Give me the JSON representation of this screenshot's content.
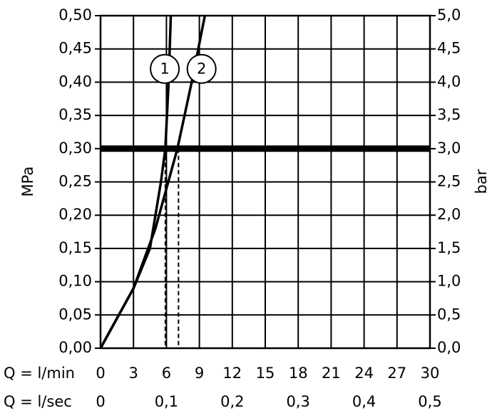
{
  "chart_data": {
    "type": "line",
    "xlabel": "Q = l/min",
    "x2label": "Q = l/sec",
    "ylabel": "MPa",
    "y2label": "bar",
    "xlim": [
      0,
      30
    ],
    "xticks": [
      0,
      3,
      6,
      9,
      12,
      15,
      18,
      21,
      24,
      27,
      30
    ],
    "x2lim": [
      0,
      0.5
    ],
    "x2ticks": [
      {
        "value": 0,
        "label": "0"
      },
      {
        "value": 0.1,
        "label": "0,1"
      },
      {
        "value": 0.2,
        "label": "0,2"
      },
      {
        "value": 0.3,
        "label": "0,3"
      },
      {
        "value": 0.4,
        "label": "0,4"
      },
      {
        "value": 0.5,
        "label": "0,5"
      }
    ],
    "ylim": [
      0,
      0.5
    ],
    "yticks": [
      {
        "value": 0,
        "label": "0,00"
      },
      {
        "value": 0.05,
        "label": "0,05"
      },
      {
        "value": 0.1,
        "label": "0,10"
      },
      {
        "value": 0.15,
        "label": "0,15"
      },
      {
        "value": 0.2,
        "label": "0,20"
      },
      {
        "value": 0.25,
        "label": "0,25"
      },
      {
        "value": 0.3,
        "label": "0,30"
      },
      {
        "value": 0.35,
        "label": "0,35"
      },
      {
        "value": 0.4,
        "label": "0,40"
      },
      {
        "value": 0.45,
        "label": "0,45"
      },
      {
        "value": 0.5,
        "label": "0,50"
      }
    ],
    "y2lim": [
      0,
      5
    ],
    "y2ticks": [
      {
        "value": 0,
        "label": "0,0"
      },
      {
        "value": 0.5,
        "label": "0,5"
      },
      {
        "value": 1,
        "label": "1,0"
      },
      {
        "value": 1.5,
        "label": "1,5"
      },
      {
        "value": 2,
        "label": "2,0"
      },
      {
        "value": 2.5,
        "label": "2,5"
      },
      {
        "value": 3,
        "label": "3,0"
      },
      {
        "value": 3.5,
        "label": "3,5"
      },
      {
        "value": 4,
        "label": "4,0"
      },
      {
        "value": 4.5,
        "label": "4,5"
      },
      {
        "value": 5,
        "label": "5,0"
      }
    ],
    "grid": true,
    "reference_line": 0.3,
    "drop_lines": [
      5.9,
      7.1
    ],
    "series": [
      {
        "name": "1",
        "color": "#000000",
        "label_at": [
          5.85,
          0.42
        ],
        "x": [
          0,
          3,
          4.5,
          5.5,
          5.9,
          6.2,
          6.4
        ],
        "values": [
          0,
          0.09,
          0.15,
          0.25,
          0.3,
          0.4,
          0.5
        ]
      },
      {
        "name": "2",
        "color": "#000000",
        "label_at": [
          9.2,
          0.42
        ],
        "x": [
          0,
          3,
          5,
          7,
          8.3,
          9.5
        ],
        "values": [
          0,
          0.09,
          0.18,
          0.3,
          0.4,
          0.5
        ]
      }
    ]
  }
}
